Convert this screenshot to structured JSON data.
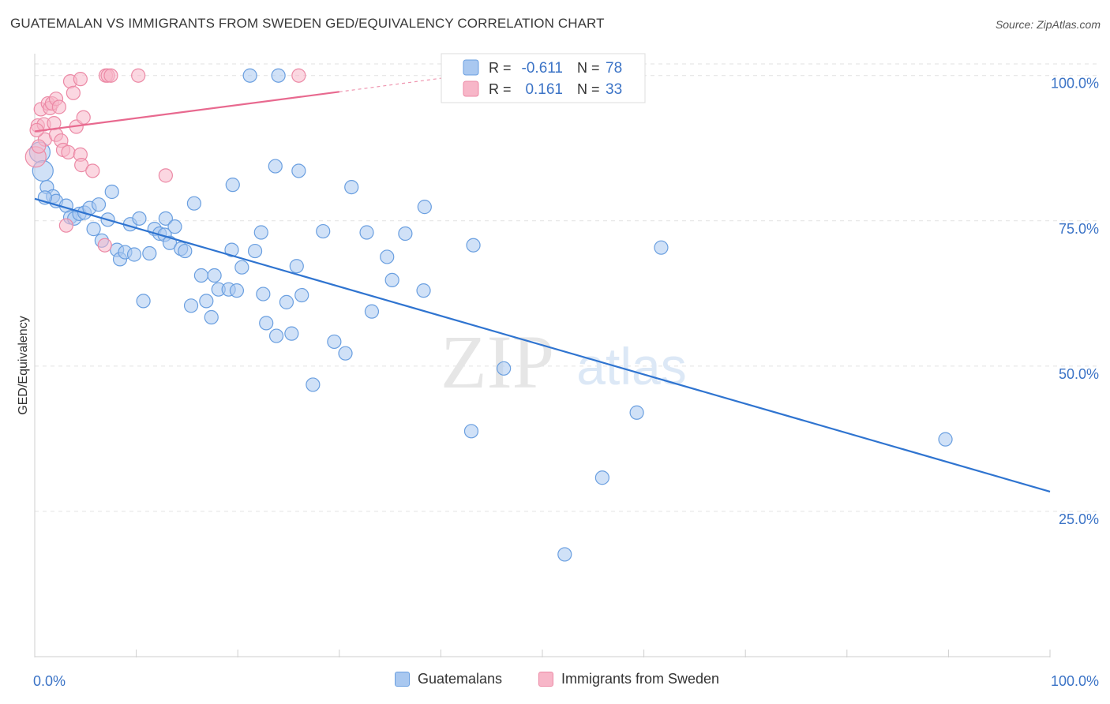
{
  "title": "GUATEMALAN VS IMMIGRANTS FROM SWEDEN GED/EQUIVALENCY CORRELATION CHART",
  "source": "Source: ZipAtlas.com",
  "watermark": {
    "zip": "ZIP",
    "atlas": "atlas"
  },
  "legend_box": [
    {
      "r_label": "R =",
      "r_value": "-0.611",
      "n_label": "N =",
      "n_value": "78"
    },
    {
      "r_label": "R =",
      "r_value": "0.161",
      "n_label": "N =",
      "n_value": "33"
    }
  ],
  "chart_data": {
    "type": "scatter",
    "title": "GUATEMALAN VS IMMIGRANTS FROM SWEDEN GED/EQUIVALENCY CORRELATION CHART",
    "xlabel": "",
    "ylabel": "GED/Equivalency",
    "xlim": [
      0,
      100
    ],
    "ylim": [
      0,
      102
    ],
    "x_tick_labels": [
      "0.0%",
      "100.0%"
    ],
    "y_ticks": [
      25,
      50,
      75,
      100
    ],
    "y_tick_labels": [
      "25.0%",
      "50.0%",
      "75.0%",
      "100.0%"
    ],
    "grid": true,
    "legend_position": "bottom-center",
    "colors": {
      "blue_fill": "#a9c8f0",
      "blue_stroke": "#6a9fe0",
      "blue_line": "#2f74d0",
      "pink_fill": "#f7b6c8",
      "pink_stroke": "#ec8aa6",
      "pink_line": "#e8698f",
      "value_text": "#3b73c6",
      "grid": "#e2e2e2"
    },
    "series": [
      {
        "name": "Guatemalans",
        "color": "#a9c8f0",
        "r": -0.611,
        "n": 78,
        "trend": {
          "x": [
            0,
            100
          ],
          "y": [
            78.8,
            28.4
          ]
        },
        "points": [
          [
            0.5,
            86.8
          ],
          [
            0.8,
            83.6
          ],
          [
            1.2,
            80.8
          ],
          [
            1.8,
            79.2
          ],
          [
            2.1,
            78.4
          ],
          [
            3.1,
            77.6
          ],
          [
            3.5,
            75.6
          ],
          [
            3.9,
            75.4
          ],
          [
            4.4,
            76.2
          ],
          [
            4.9,
            76.4
          ],
          [
            5.4,
            77.2
          ],
          [
            6.3,
            77.8
          ],
          [
            5.8,
            73.6
          ],
          [
            6.6,
            71.6
          ],
          [
            7.2,
            75.2
          ],
          [
            7.6,
            80.0
          ],
          [
            8.1,
            70.0
          ],
          [
            8.4,
            68.4
          ],
          [
            8.9,
            69.6
          ],
          [
            9.4,
            74.4
          ],
          [
            9.8,
            69.2
          ],
          [
            10.3,
            75.4
          ],
          [
            11.3,
            69.4
          ],
          [
            11.8,
            73.6
          ],
          [
            12.3,
            72.8
          ],
          [
            12.8,
            72.6
          ],
          [
            12.9,
            75.4
          ],
          [
            13.3,
            71.2
          ],
          [
            13.8,
            74.0
          ],
          [
            14.4,
            70.2
          ],
          [
            14.8,
            69.8
          ],
          [
            15.7,
            78.0
          ],
          [
            10.7,
            61.2
          ],
          [
            15.4,
            60.4
          ],
          [
            16.4,
            65.6
          ],
          [
            16.9,
            61.2
          ],
          [
            17.4,
            58.4
          ],
          [
            17.7,
            65.6
          ],
          [
            18.1,
            63.2
          ],
          [
            19.1,
            63.2
          ],
          [
            19.4,
            70.0
          ],
          [
            19.5,
            81.2
          ],
          [
            19.9,
            63.0
          ],
          [
            20.4,
            67.0
          ],
          [
            21.7,
            69.8
          ],
          [
            22.3,
            73.0
          ],
          [
            22.5,
            62.4
          ],
          [
            22.8,
            57.4
          ],
          [
            23.8,
            55.2
          ],
          [
            23.7,
            84.4
          ],
          [
            24.8,
            61.0
          ],
          [
            25.3,
            55.6
          ],
          [
            25.8,
            67.2
          ],
          [
            26.0,
            83.6
          ],
          [
            26.3,
            62.2
          ],
          [
            21.2,
            100.0
          ],
          [
            24.0,
            100.0
          ],
          [
            27.4,
            46.8
          ],
          [
            28.4,
            73.2
          ],
          [
            29.5,
            54.2
          ],
          [
            30.6,
            52.2
          ],
          [
            31.2,
            80.8
          ],
          [
            32.7,
            73.0
          ],
          [
            33.2,
            59.4
          ],
          [
            34.7,
            68.8
          ],
          [
            35.2,
            64.8
          ],
          [
            36.5,
            72.8
          ],
          [
            38.3,
            63.0
          ],
          [
            38.4,
            77.4
          ],
          [
            43.2,
            70.8
          ],
          [
            43.0,
            38.8
          ],
          [
            46.2,
            49.6
          ],
          [
            52.2,
            17.6
          ],
          [
            55.9,
            30.8
          ],
          [
            59.3,
            42.0
          ],
          [
            61.7,
            70.4
          ],
          [
            89.7,
            37.4
          ],
          [
            1.0,
            79.0
          ]
        ]
      },
      {
        "name": "Immigrants from Sweden",
        "color": "#f7b6c8",
        "r": 0.161,
        "n": 33,
        "trend": {
          "x": [
            0,
            30
          ],
          "y": [
            90.4,
            97.2
          ]
        },
        "trend_dashed": {
          "x": [
            30,
            42
          ],
          "y": [
            97.2,
            100.0
          ]
        },
        "points": [
          [
            0.1,
            86.0
          ],
          [
            0.3,
            91.4
          ],
          [
            0.6,
            94.2
          ],
          [
            0.9,
            91.6
          ],
          [
            1.0,
            89.0
          ],
          [
            1.3,
            95.2
          ],
          [
            1.5,
            94.4
          ],
          [
            1.7,
            95.2
          ],
          [
            1.9,
            91.8
          ],
          [
            2.1,
            89.8
          ],
          [
            2.1,
            96.0
          ],
          [
            2.4,
            94.6
          ],
          [
            2.6,
            88.8
          ],
          [
            2.8,
            87.2
          ],
          [
            3.1,
            74.2
          ],
          [
            3.3,
            86.8
          ],
          [
            3.5,
            99.0
          ],
          [
            3.8,
            97.0
          ],
          [
            4.1,
            91.2
          ],
          [
            4.5,
            99.4
          ],
          [
            4.5,
            86.4
          ],
          [
            4.6,
            84.6
          ],
          [
            4.8,
            92.8
          ],
          [
            5.7,
            83.6
          ],
          [
            6.9,
            70.8
          ],
          [
            7.0,
            100.0
          ],
          [
            7.2,
            100.0
          ],
          [
            7.5,
            100.0
          ],
          [
            10.2,
            100.0
          ],
          [
            12.9,
            82.8
          ],
          [
            26.0,
            100.0
          ],
          [
            0.4,
            87.8
          ],
          [
            0.2,
            90.6
          ]
        ]
      }
    ]
  },
  "bottom_legend": [
    {
      "label": "Guatemalans"
    },
    {
      "label": "Immigrants from Sweden"
    }
  ]
}
